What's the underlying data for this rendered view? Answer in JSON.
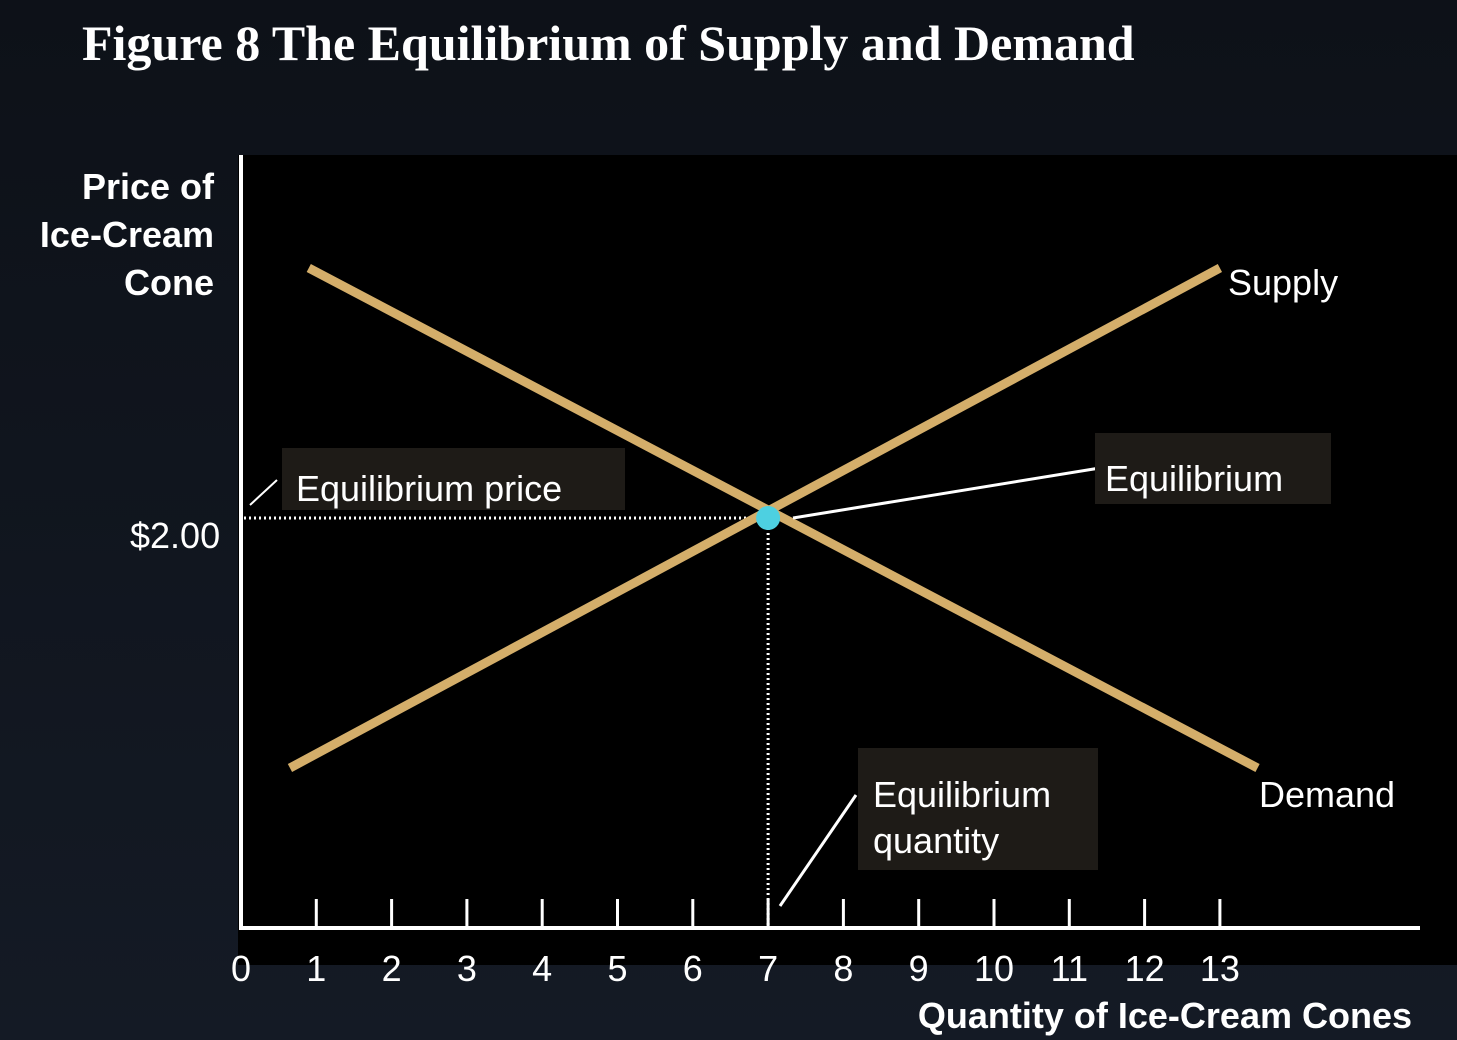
{
  "title": "Figure 8 The Equilibrium of Supply and Demand",
  "colors": {
    "curve": "#d4ae6a",
    "equilibrium_point": "#4dd0e1",
    "background": "#000000",
    "axis": "#ffffff"
  },
  "chart_data": {
    "type": "line",
    "ylabel_lines": [
      "Price of",
      "Ice-Cream",
      "Cone"
    ],
    "xlabel": "Quantity of Ice-Cream Cones",
    "x_ticks": [
      "0",
      "1",
      "2",
      "3",
      "4",
      "5",
      "6",
      "7",
      "8",
      "9",
      "10",
      "11",
      "12",
      "13"
    ],
    "xlim": [
      0,
      13
    ],
    "y_ticks": [
      {
        "value": 2.0,
        "label": "$2.00"
      }
    ],
    "series": [
      {
        "name": "Supply",
        "points": [
          [
            0.65,
            1.0
          ],
          [
            13,
            3.0
          ]
        ]
      },
      {
        "name": "Demand",
        "points": [
          [
            0.9,
            3.0
          ],
          [
            13.5,
            1.0
          ]
        ]
      }
    ],
    "equilibrium": {
      "x": 7,
      "y": 2.0
    },
    "annotations": {
      "price": "Equilibrium price",
      "point": "Equilibrium",
      "quantity_lines": [
        "Equilibrium",
        "quantity"
      ]
    },
    "grid": false,
    "legend": "none"
  }
}
